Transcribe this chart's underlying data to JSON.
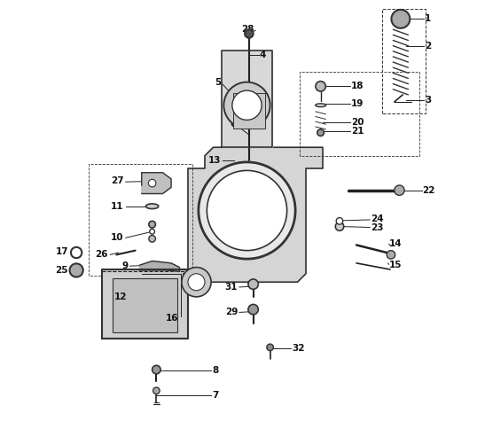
{
  "title": "",
  "bg_color": "#ffffff",
  "fig_width": 5.38,
  "fig_height": 4.75,
  "dpi": 100,
  "label_fontsize": 7.5,
  "label_fontweight": "bold",
  "label_color": "#111111",
  "line_color": "#222222",
  "line_width": 0.7,
  "component_color": "#333333"
}
